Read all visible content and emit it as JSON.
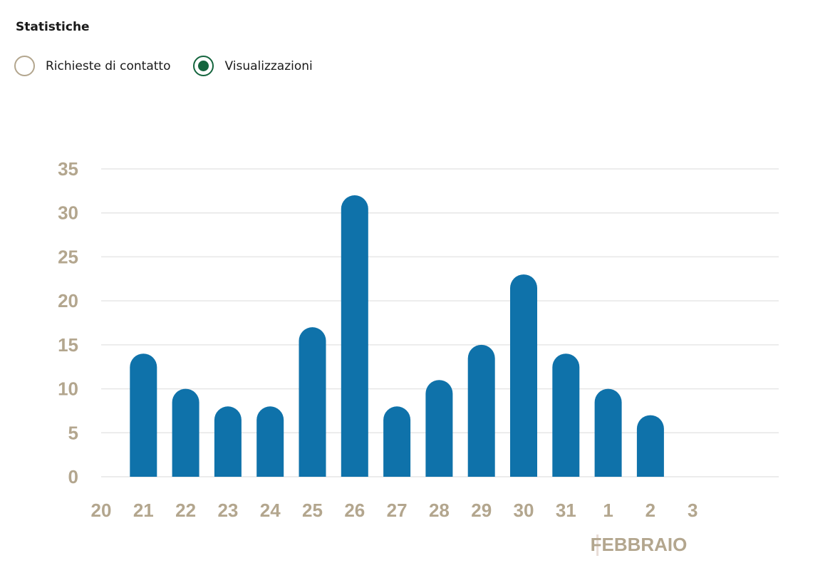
{
  "header": {
    "title": "Statistiche"
  },
  "filters": [
    {
      "label": "Richieste di contatto",
      "checked": false
    },
    {
      "label": "Visualizzazioni",
      "checked": true
    }
  ],
  "colors": {
    "bar": "#0f72aa",
    "tick_text": "#b3a68e",
    "grid": "#e6e6e6",
    "radio_checked": "#15653e",
    "radio_border": "#b3a68e"
  },
  "chart_data": {
    "type": "bar",
    "x": [
      "20",
      "21",
      "22",
      "23",
      "24",
      "25",
      "26",
      "27",
      "28",
      "29",
      "30",
      "31",
      "1",
      "2",
      "3"
    ],
    "values": [
      null,
      14,
      10,
      8,
      8,
      17,
      32,
      8,
      11,
      15,
      23,
      14,
      10,
      7,
      null
    ],
    "title": "",
    "xlabel": "",
    "ylabel": "",
    "ylim": [
      0,
      35
    ],
    "yticks": [
      "0",
      "5",
      "10",
      "15",
      "20",
      "25",
      "30",
      "35"
    ],
    "annotations": [
      {
        "text": "FEBBRAIO",
        "at": "1"
      }
    ],
    "grid": true,
    "legend": "none"
  }
}
